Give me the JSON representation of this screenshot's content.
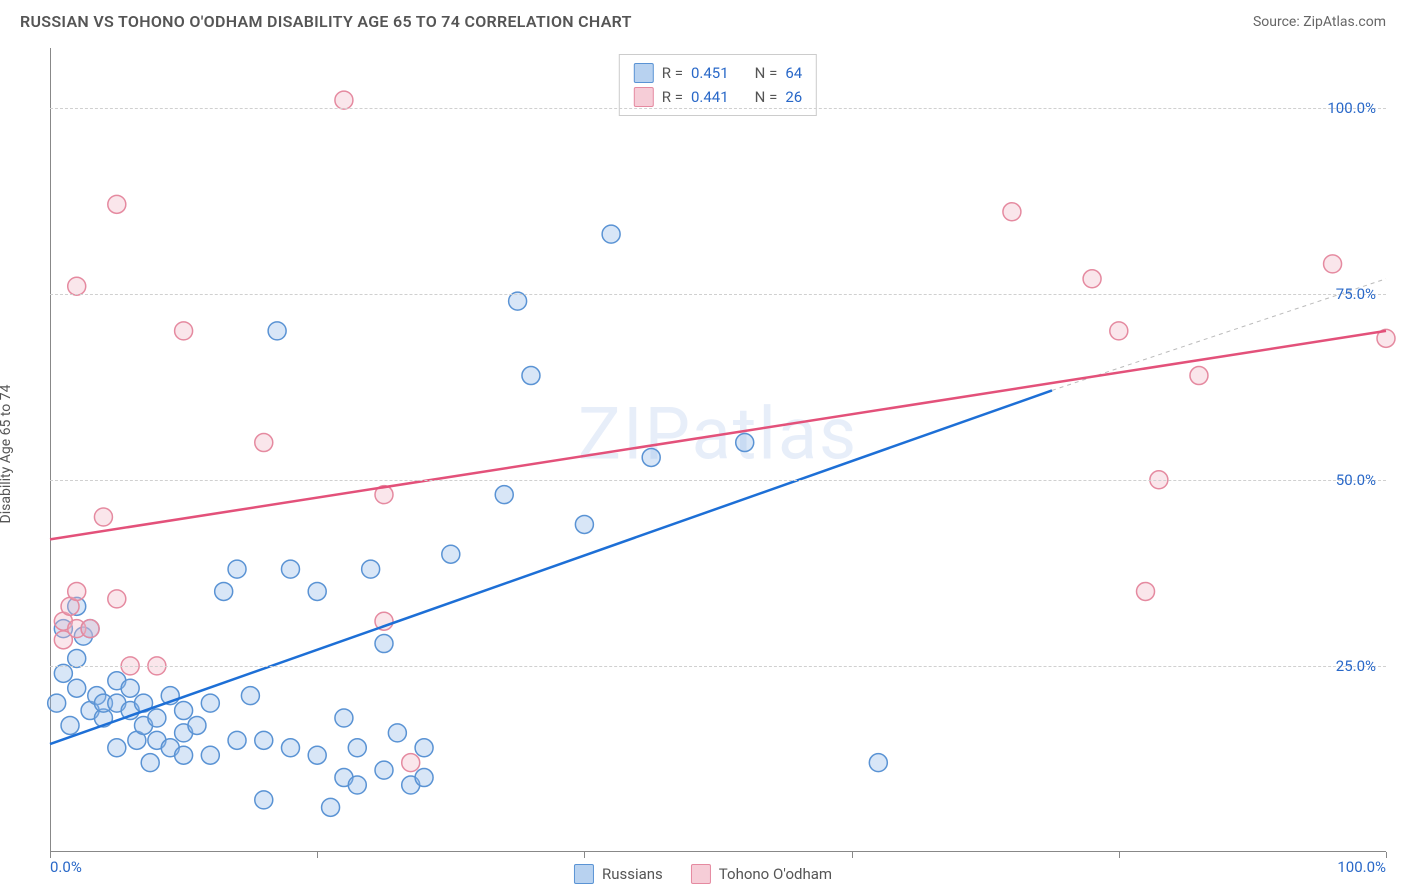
{
  "header": {
    "title": "RUSSIAN VS TOHONO O'ODHAM DISABILITY AGE 65 TO 74 CORRELATION CHART",
    "source": "Source: ZipAtlas.com"
  },
  "chart": {
    "type": "scatter",
    "watermark": "ZIPatlas",
    "y_axis_label": "Disability Age 65 to 74",
    "xlim": [
      0,
      100
    ],
    "ylim": [
      0,
      108
    ],
    "x_ticks": [
      0,
      20,
      40,
      60,
      80,
      100
    ],
    "x_tick_labels": {
      "0": "0.0%",
      "100": "100.0%"
    },
    "y_ticks": [
      25,
      50,
      75,
      100
    ],
    "y_tick_labels": {
      "25": "25.0%",
      "50": "50.0%",
      "75": "75.0%",
      "100": "100.0%"
    },
    "grid_color": "#d8d8d8",
    "background_color": "#ffffff",
    "marker_radius": 9,
    "marker_fill_opacity": 0.35,
    "marker_stroke_width": 1.5,
    "trendline_width": 2.5,
    "series": {
      "russians": {
        "label": "Russians",
        "color_fill": "#8fb7e8",
        "color_stroke": "#5a93d4",
        "trend_color": "#1d6fd6",
        "R": "0.451",
        "N": "64",
        "trend": {
          "x1": 0,
          "y1": 14.5,
          "x2": 75,
          "y2": 62
        },
        "trend_ext": {
          "x1": 75,
          "y1": 62,
          "x2": 100,
          "y2": 77
        },
        "points": [
          [
            0.5,
            20
          ],
          [
            1,
            24
          ],
          [
            1,
            30
          ],
          [
            1.5,
            17
          ],
          [
            2,
            33
          ],
          [
            2,
            26
          ],
          [
            2,
            22
          ],
          [
            2.5,
            29
          ],
          [
            3,
            30
          ],
          [
            3,
            19
          ],
          [
            3.5,
            21
          ],
          [
            4,
            18
          ],
          [
            4,
            20
          ],
          [
            5,
            23
          ],
          [
            5,
            20
          ],
          [
            5,
            14
          ],
          [
            6,
            19
          ],
          [
            6,
            22
          ],
          [
            6.5,
            15
          ],
          [
            7,
            20
          ],
          [
            7,
            17
          ],
          [
            7.5,
            12
          ],
          [
            8,
            15
          ],
          [
            8,
            18
          ],
          [
            9,
            21
          ],
          [
            9,
            14
          ],
          [
            10,
            19
          ],
          [
            10,
            13
          ],
          [
            10,
            16
          ],
          [
            11,
            17
          ],
          [
            12,
            20
          ],
          [
            12,
            13
          ],
          [
            13,
            35
          ],
          [
            14,
            15
          ],
          [
            14,
            38
          ],
          [
            15,
            21
          ],
          [
            16,
            15
          ],
          [
            16,
            7
          ],
          [
            17,
            70
          ],
          [
            18,
            14
          ],
          [
            18,
            38
          ],
          [
            20,
            13
          ],
          [
            20,
            35
          ],
          [
            21,
            6
          ],
          [
            22,
            18
          ],
          [
            22,
            10
          ],
          [
            23,
            14
          ],
          [
            23,
            9
          ],
          [
            24,
            38
          ],
          [
            25,
            11
          ],
          [
            25,
            28
          ],
          [
            26,
            16
          ],
          [
            27,
            9
          ],
          [
            28,
            14
          ],
          [
            28,
            10
          ],
          [
            30,
            40
          ],
          [
            34,
            48
          ],
          [
            35,
            74
          ],
          [
            36,
            64
          ],
          [
            40,
            44
          ],
          [
            42,
            83
          ],
          [
            45,
            53
          ],
          [
            52,
            55
          ],
          [
            62,
            12
          ]
        ]
      },
      "tohono": {
        "label": "Tohono O'odham",
        "color_fill": "#f2b8c6",
        "color_stroke": "#e58aa0",
        "trend_color": "#e3517a",
        "R": "0.441",
        "N": "26",
        "trend": {
          "x1": 0,
          "y1": 42,
          "x2": 100,
          "y2": 70
        },
        "points": [
          [
            1,
            31
          ],
          [
            1,
            28.5
          ],
          [
            1.5,
            33
          ],
          [
            2,
            30
          ],
          [
            2,
            35
          ],
          [
            2,
            76
          ],
          [
            3,
            30
          ],
          [
            4,
            45
          ],
          [
            5,
            87
          ],
          [
            5,
            34
          ],
          [
            6,
            25
          ],
          [
            8,
            25
          ],
          [
            10,
            70
          ],
          [
            16,
            55
          ],
          [
            22,
            101
          ],
          [
            25,
            48
          ],
          [
            25,
            31
          ],
          [
            27,
            12
          ],
          [
            72,
            86
          ],
          [
            78,
            77
          ],
          [
            80,
            70
          ],
          [
            82,
            35
          ],
          [
            83,
            50
          ],
          [
            86,
            64
          ],
          [
            96,
            79
          ],
          [
            100,
            69
          ]
        ]
      }
    },
    "legend": {
      "rows": [
        {
          "swatch_fill": "#b8d2f0",
          "swatch_stroke": "#5a93d4",
          "r_label": "R =",
          "r_val": "0.451",
          "n_label": "N =",
          "n_val": "64"
        },
        {
          "swatch_fill": "#f6cdd7",
          "swatch_stroke": "#e58aa0",
          "r_label": "R =",
          "r_val": "0.441",
          "n_label": "N =",
          "n_val": "26"
        }
      ]
    },
    "bottom_legend": [
      {
        "swatch_fill": "#b8d2f0",
        "swatch_stroke": "#5a93d4",
        "label": "Russians"
      },
      {
        "swatch_fill": "#f6cdd7",
        "swatch_stroke": "#e58aa0",
        "label": "Tohono O'odham"
      }
    ]
  }
}
